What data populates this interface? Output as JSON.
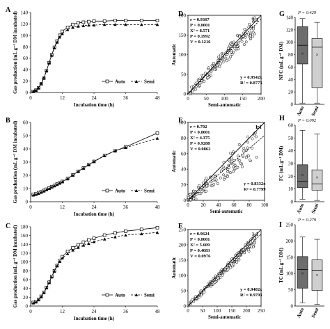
{
  "chart_data": [
    {
      "panel": "A",
      "type": "line",
      "xlabel": "Incubation time (h)",
      "ylabel": "Gas production (mL g⁻¹ DM incubated)",
      "xlim": [
        0,
        48
      ],
      "ylim": [
        0,
        140
      ],
      "xticks": [
        0,
        12,
        24,
        36,
        48
      ],
      "yticks": [
        0,
        20,
        40,
        60,
        80,
        100,
        120,
        140
      ],
      "legend": "bottom-right",
      "series": [
        {
          "name": "Auto",
          "x": [
            1,
            2,
            3,
            4,
            5,
            6,
            7,
            8,
            9,
            10,
            11,
            12,
            14,
            16,
            18,
            20,
            22,
            24,
            28,
            32,
            36,
            42,
            48
          ],
          "values": [
            2,
            4,
            8,
            15,
            25,
            38,
            52,
            66,
            79,
            90,
            100,
            107,
            114,
            119,
            122,
            123,
            124,
            125,
            125,
            126,
            126,
            126,
            126
          ]
        },
        {
          "name": "Semi",
          "x": [
            1,
            2,
            3,
            4,
            5,
            6,
            7,
            8,
            9,
            10,
            11,
            12,
            14,
            16,
            18,
            20,
            22,
            24,
            28,
            32,
            36,
            42,
            48
          ],
          "values": [
            2,
            4,
            8,
            16,
            26,
            38,
            52,
            65,
            78,
            88,
            97,
            103,
            110,
            114,
            116,
            117,
            118,
            118,
            119,
            119,
            119,
            119,
            119
          ]
        }
      ]
    },
    {
      "panel": "B",
      "type": "line",
      "xlabel": "Incubation time (h)",
      "ylabel": "Gas production (mL g⁻¹ DM incubated)",
      "xlim": [
        0,
        48
      ],
      "ylim": [
        0,
        60
      ],
      "xticks": [
        0,
        12,
        24,
        36,
        48
      ],
      "yticks": [
        0,
        10,
        20,
        30,
        40,
        50,
        60
      ],
      "legend": "bottom-right",
      "series": [
        {
          "name": "Auto",
          "x": [
            1,
            2,
            3,
            4,
            5,
            6,
            7,
            8,
            9,
            10,
            11,
            12,
            14,
            16,
            18,
            20,
            22,
            24,
            28,
            32,
            36,
            48
          ],
          "values": [
            5.5,
            6,
            6.8,
            7.6,
            8.5,
            9.4,
            10.3,
            11.3,
            12.3,
            13.3,
            14.2,
            15.3,
            17.5,
            20.2,
            23,
            25.5,
            28,
            30.5,
            35,
            38.5,
            41.5,
            52
          ]
        },
        {
          "name": "Semi",
          "x": [
            1,
            2,
            3,
            4,
            5,
            6,
            7,
            8,
            9,
            10,
            11,
            12,
            14,
            16,
            18,
            20,
            22,
            24,
            28,
            32,
            36,
            48
          ],
          "values": [
            5,
            5.5,
            6.3,
            7.1,
            8,
            9,
            10,
            11,
            12,
            13,
            14,
            15,
            17.3,
            20,
            22.8,
            25.4,
            27.9,
            30.3,
            34.8,
            38.5,
            41,
            48
          ]
        }
      ]
    },
    {
      "panel": "C",
      "type": "line",
      "xlabel": "Incubation time (h)",
      "ylabel": "Gas production (mL g⁻¹ DM incubated)",
      "xlim": [
        0,
        48
      ],
      "ylim": [
        0,
        180
      ],
      "xticks": [
        0,
        12,
        24,
        36,
        48
      ],
      "yticks": [
        0,
        20,
        40,
        60,
        80,
        100,
        120,
        140,
        160,
        180
      ],
      "legend": "bottom-right",
      "series": [
        {
          "name": "Auto",
          "x": [
            1,
            2,
            3,
            4,
            5,
            6,
            7,
            8,
            9,
            10,
            11,
            12,
            14,
            16,
            18,
            20,
            22,
            24,
            28,
            32,
            36,
            42,
            48
          ],
          "values": [
            8,
            10,
            15,
            22,
            31,
            42,
            54,
            67,
            80,
            92,
            103,
            112,
            124,
            132,
            139,
            145,
            150,
            154,
            161,
            166,
            170,
            174,
            178
          ]
        },
        {
          "name": "Semi",
          "x": [
            1,
            2,
            3,
            4,
            5,
            6,
            7,
            8,
            9,
            10,
            11,
            12,
            14,
            16,
            18,
            20,
            22,
            24,
            28,
            32,
            36,
            42,
            48
          ],
          "values": [
            7,
            9,
            14,
            21,
            30,
            41,
            53,
            66,
            79,
            91,
            101,
            109,
            119,
            127,
            133,
            138,
            142,
            146,
            152,
            157,
            161,
            164,
            167
          ]
        }
      ]
    },
    {
      "panel": "D",
      "type": "scatter",
      "xlabel": "Semi-automatic",
      "ylabel": "Automatic",
      "xlim": [
        0,
        200
      ],
      "ylim": [
        0,
        200
      ],
      "xticks": [
        0,
        50,
        100,
        150,
        200
      ],
      "yticks": [
        0,
        50,
        100,
        150,
        200
      ],
      "corner_label": "1:1",
      "stats": [
        "r = 0.9367",
        "P < 0.0001",
        "X² = 8.571",
        "P = 0.1992",
        "V = 0.1216"
      ],
      "fit": [
        "y = 0.9542x",
        "R² = 0.8773"
      ],
      "slope": 0.9542
    },
    {
      "panel": "E",
      "type": "scatter",
      "xlabel": "Semi-automatic",
      "ylabel": "Automatic",
      "xlim": [
        0,
        100
      ],
      "ylim": [
        0,
        100
      ],
      "xticks": [
        0,
        20,
        40,
        60,
        80,
        100
      ],
      "yticks": [
        0,
        20,
        40,
        60,
        80,
        100
      ],
      "corner_label": "1:1",
      "stats": [
        "r = 0.702",
        "P < 0.0001",
        "X² = 4.375",
        "P = 0.9288",
        "V = 0.0862"
      ],
      "fit": [
        "y = 0.8332x",
        "R² = 0.7799"
      ],
      "slope": 0.8332
    },
    {
      "panel": "F",
      "type": "scatter",
      "xlabel": "Semi-automatic",
      "ylabel": "Automatic",
      "xlim": [
        0,
        250
      ],
      "ylim": [
        0,
        250
      ],
      "xticks": [
        0,
        50,
        100,
        150,
        200,
        250
      ],
      "yticks": [
        0,
        50,
        100,
        150,
        200,
        250
      ],
      "corner_label": "1:1",
      "stats": [
        "r = 0.9624",
        "P < 0.0001",
        "X² = 5.609",
        "P = 0.4683",
        "V = 0.0976"
      ],
      "fit": [
        "y = 0.9402x",
        "R² = 0.9793"
      ],
      "slope": 0.9402
    },
    {
      "panel": "G",
      "type": "box",
      "ylabel": "NFC (mL g⁻¹ DM)",
      "ylim": [
        0,
        140
      ],
      "yticks": [
        0,
        20,
        40,
        60,
        80,
        100,
        120,
        140
      ],
      "pvalue": "P = 0.429",
      "series": [
        {
          "name": "Auto",
          "min": 2,
          "q1": 65,
          "median": 95,
          "q3": 125,
          "max": 138,
          "mean": 82,
          "color": "#6d6d6d"
        },
        {
          "name": "Semi",
          "min": 2,
          "q1": 27,
          "median": 92,
          "q3": 106,
          "max": 132,
          "mean": 80,
          "color": "#cfcfcf"
        }
      ]
    },
    {
      "panel": "H",
      "type": "box",
      "ylabel": "FC (mL g⁻¹ DM)",
      "ylim": [
        0,
        60
      ],
      "yticks": [
        0,
        10,
        20,
        30,
        40,
        50,
        60
      ],
      "pvalue": "P = 0.092",
      "series": [
        {
          "name": "Auto",
          "min": 2,
          "q1": 11,
          "median": 16,
          "q3": 29,
          "max": 56,
          "mean": 21,
          "color": "#6d6d6d"
        },
        {
          "name": "Semi",
          "min": 1,
          "q1": 9,
          "median": 14,
          "q3": 25,
          "max": 53,
          "mean": 19,
          "color": "#cfcfcf"
        }
      ]
    },
    {
      "panel": "I",
      "type": "box",
      "ylabel": "TC (mL g⁻¹ DM)",
      "ylim": [
        0,
        250
      ],
      "yticks": [
        0,
        50,
        100,
        150,
        200,
        250
      ],
      "pvalue": "P = 0.279",
      "series": [
        {
          "name": "Auto",
          "min": 10,
          "q1": 55,
          "median": 112,
          "q3": 152,
          "max": 212,
          "mean": 100,
          "color": "#6d6d6d"
        },
        {
          "name": "Semi",
          "min": 5,
          "q1": 48,
          "median": 110,
          "q3": 142,
          "max": 205,
          "mean": 95,
          "color": "#cfcfcf"
        }
      ]
    }
  ]
}
